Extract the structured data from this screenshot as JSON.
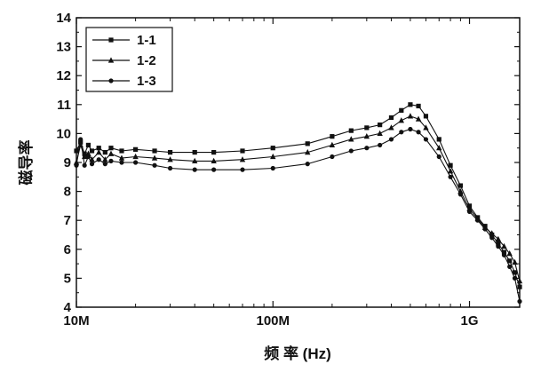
{
  "chart_data": {
    "type": "line",
    "xlabel": "频 率 (Hz)",
    "ylabel": "磁导率",
    "x_scale": "log",
    "xlim": [
      10000000,
      1800000000
    ],
    "ylim": [
      4,
      14
    ],
    "x_ticks": [
      {
        "value": 10000000,
        "label": "10M"
      },
      {
        "value": 100000000,
        "label": "100M"
      },
      {
        "value": 1000000000,
        "label": "1G"
      }
    ],
    "y_ticks": [
      4,
      5,
      6,
      7,
      8,
      9,
      10,
      11,
      12,
      13,
      14
    ],
    "legend_position": "top-left",
    "series": [
      {
        "name": "1-1",
        "marker": "square",
        "points": [
          [
            10000000,
            9.4
          ],
          [
            10500000,
            9.7
          ],
          [
            11000000,
            9.3
          ],
          [
            11500000,
            9.6
          ],
          [
            12000000,
            9.4
          ],
          [
            13000000,
            9.5
          ],
          [
            14000000,
            9.35
          ],
          [
            15000000,
            9.5
          ],
          [
            17000000,
            9.4
          ],
          [
            20000000,
            9.45
          ],
          [
            25000000,
            9.4
          ],
          [
            30000000,
            9.35
          ],
          [
            40000000,
            9.35
          ],
          [
            50000000,
            9.35
          ],
          [
            70000000,
            9.4
          ],
          [
            100000000,
            9.5
          ],
          [
            150000000,
            9.65
          ],
          [
            200000000,
            9.9
          ],
          [
            250000000,
            10.1
          ],
          [
            300000000,
            10.2
          ],
          [
            350000000,
            10.3
          ],
          [
            400000000,
            10.55
          ],
          [
            450000000,
            10.8
          ],
          [
            500000000,
            11.0
          ],
          [
            550000000,
            10.95
          ],
          [
            600000000,
            10.6
          ],
          [
            700000000,
            9.8
          ],
          [
            800000000,
            8.9
          ],
          [
            900000000,
            8.2
          ],
          [
            1000000000,
            7.5
          ],
          [
            1100000000,
            7.1
          ],
          [
            1200000000,
            6.8
          ],
          [
            1300000000,
            6.5
          ],
          [
            1400000000,
            6.2
          ],
          [
            1500000000,
            5.9
          ],
          [
            1600000000,
            5.6
          ],
          [
            1700000000,
            5.2
          ],
          [
            1800000000,
            4.7
          ]
        ]
      },
      {
        "name": "1-2",
        "marker": "triangle",
        "points": [
          [
            10000000,
            9.0
          ],
          [
            10500000,
            9.6
          ],
          [
            11000000,
            9.2
          ],
          [
            11500000,
            9.3
          ],
          [
            12000000,
            9.1
          ],
          [
            13000000,
            9.35
          ],
          [
            14000000,
            9.1
          ],
          [
            15000000,
            9.3
          ],
          [
            17000000,
            9.15
          ],
          [
            20000000,
            9.2
          ],
          [
            25000000,
            9.15
          ],
          [
            30000000,
            9.1
          ],
          [
            40000000,
            9.05
          ],
          [
            50000000,
            9.05
          ],
          [
            70000000,
            9.1
          ],
          [
            100000000,
            9.2
          ],
          [
            150000000,
            9.35
          ],
          [
            200000000,
            9.6
          ],
          [
            250000000,
            9.8
          ],
          [
            300000000,
            9.9
          ],
          [
            350000000,
            10.0
          ],
          [
            400000000,
            10.2
          ],
          [
            450000000,
            10.45
          ],
          [
            500000000,
            10.6
          ],
          [
            550000000,
            10.5
          ],
          [
            600000000,
            10.2
          ],
          [
            700000000,
            9.5
          ],
          [
            800000000,
            8.7
          ],
          [
            900000000,
            8.0
          ],
          [
            1000000000,
            7.4
          ],
          [
            1100000000,
            7.05
          ],
          [
            1200000000,
            6.75
          ],
          [
            1300000000,
            6.55
          ],
          [
            1400000000,
            6.35
          ],
          [
            1500000000,
            6.1
          ],
          [
            1600000000,
            5.85
          ],
          [
            1700000000,
            5.55
          ],
          [
            1800000000,
            4.9
          ]
        ]
      },
      {
        "name": "1-3",
        "marker": "circle",
        "points": [
          [
            10000000,
            8.9
          ],
          [
            10500000,
            9.8
          ],
          [
            11000000,
            8.9
          ],
          [
            11500000,
            9.2
          ],
          [
            12000000,
            8.95
          ],
          [
            13000000,
            9.1
          ],
          [
            14000000,
            8.95
          ],
          [
            15000000,
            9.05
          ],
          [
            17000000,
            9.0
          ],
          [
            20000000,
            9.0
          ],
          [
            25000000,
            8.9
          ],
          [
            30000000,
            8.8
          ],
          [
            40000000,
            8.75
          ],
          [
            50000000,
            8.75
          ],
          [
            70000000,
            8.75
          ],
          [
            100000000,
            8.8
          ],
          [
            150000000,
            8.95
          ],
          [
            200000000,
            9.2
          ],
          [
            250000000,
            9.4
          ],
          [
            300000000,
            9.5
          ],
          [
            350000000,
            9.6
          ],
          [
            400000000,
            9.8
          ],
          [
            450000000,
            10.05
          ],
          [
            500000000,
            10.15
          ],
          [
            550000000,
            10.05
          ],
          [
            600000000,
            9.8
          ],
          [
            700000000,
            9.2
          ],
          [
            800000000,
            8.5
          ],
          [
            900000000,
            7.9
          ],
          [
            1000000000,
            7.3
          ],
          [
            1100000000,
            7.0
          ],
          [
            1200000000,
            6.7
          ],
          [
            1300000000,
            6.4
          ],
          [
            1400000000,
            6.1
          ],
          [
            1500000000,
            5.8
          ],
          [
            1600000000,
            5.4
          ],
          [
            1700000000,
            5.0
          ],
          [
            1800000000,
            4.2
          ]
        ]
      }
    ]
  }
}
